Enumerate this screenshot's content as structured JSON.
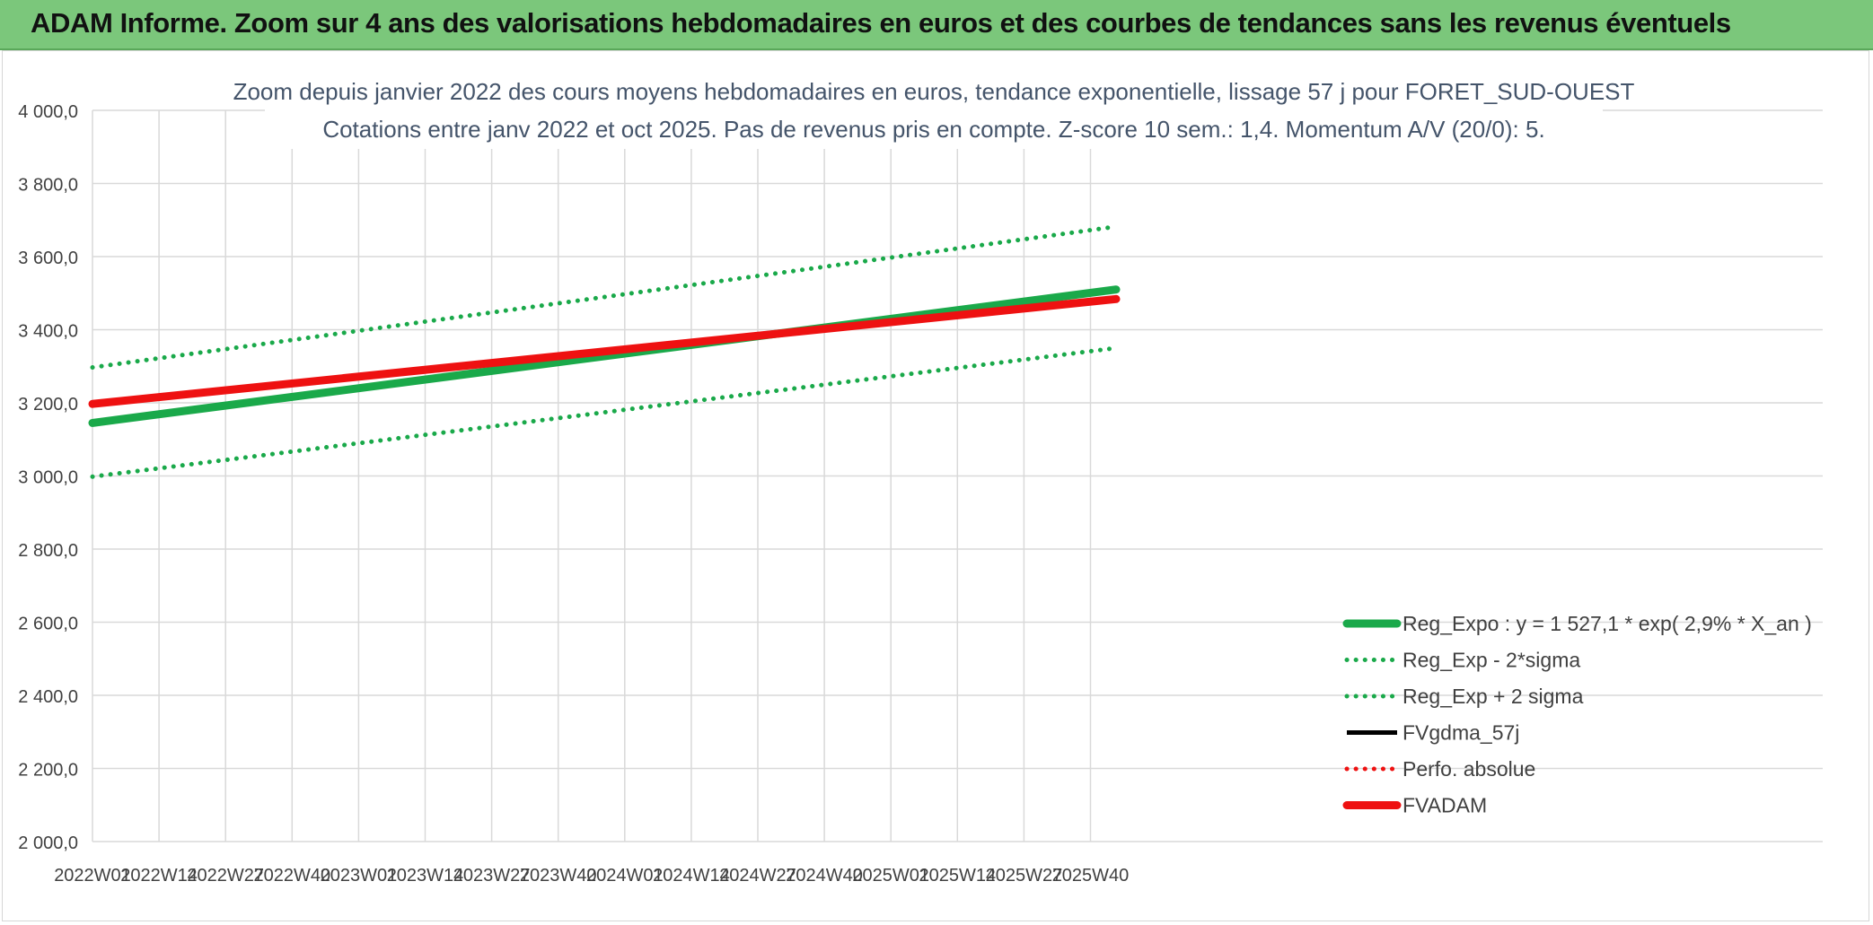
{
  "banner": {
    "title": "ADAM Informe. Zoom sur 4 ans des valorisations hebdomadaires en euros et des courbes de tendances sans les revenus éventuels"
  },
  "colors": {
    "banner_bg": "#7bc77b",
    "reg_green": "#1aa94a",
    "fvadam_red": "#ee1111",
    "grid": "#d9d9d9",
    "text": "#404040"
  },
  "chart_data": {
    "type": "line",
    "title": "Zoom depuis janvier 2022 des cours moyens hebdomadaires en euros, tendance exponentielle, lissage 57 j pour FORET_SUD-OUEST",
    "subtitle": "Cotations entre janv 2022 et oct 2025. Pas de revenus pris en compte. Z-score 10 sem.: 1,4. Momentum A/V (20/0): 5.",
    "xlabel": "",
    "ylabel": "",
    "ylim": [
      2000,
      4000
    ],
    "yticks": [
      "4 000,0",
      "3 800,0",
      "3 600,0",
      "3 400,0",
      "3 200,0",
      "3 000,0",
      "2 800,0",
      "2 600,0",
      "2 400,0",
      "2 200,0",
      "2 000,0"
    ],
    "xticks": [
      "2022W01",
      "2022W14",
      "2022W27",
      "2022W40",
      "2023W01",
      "2023W14",
      "2023W27",
      "2023W40",
      "2024W01",
      "2024W14",
      "2024W27",
      "2024W40",
      "2025W01",
      "2025W14",
      "2025W27",
      "2025W40"
    ],
    "grid": true,
    "legend_position": "bottom-right",
    "series": [
      {
        "name": "Reg_Expo : y = 1 527,1 * exp( 2,9% *  X_an )",
        "color": "#1aa94a",
        "style": "solid-thick",
        "x": [
          "2022W01",
          "2025W45"
        ],
        "values": [
          3145,
          3510
        ]
      },
      {
        "name": "Reg_Exp - 2*sigma",
        "color": "#1aa94a",
        "style": "dotted",
        "x": [
          "2022W01",
          "2025W45"
        ],
        "values": [
          2998,
          3350
        ]
      },
      {
        "name": "Reg_Exp + 2 sigma",
        "color": "#1aa94a",
        "style": "dotted",
        "x": [
          "2022W01",
          "2025W45"
        ],
        "values": [
          3297,
          3682
        ]
      },
      {
        "name": "FVgdma_57j",
        "color": "#000000",
        "style": "solid",
        "x": [],
        "values": []
      },
      {
        "name": "Perfo. absolue",
        "color": "#ee1111",
        "style": "dotted",
        "x": [],
        "values": []
      },
      {
        "name": "FVADAM",
        "color": "#ee1111",
        "style": "solid-thick",
        "x": [
          "2022W01",
          "2025W45"
        ],
        "values": [
          3197,
          3484
        ]
      }
    ]
  }
}
